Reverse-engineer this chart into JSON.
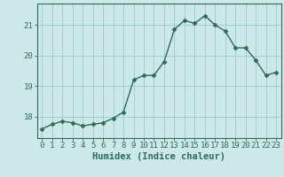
{
  "x": [
    0,
    1,
    2,
    3,
    4,
    5,
    6,
    7,
    8,
    9,
    10,
    11,
    12,
    13,
    14,
    15,
    16,
    17,
    18,
    19,
    20,
    21,
    22,
    23
  ],
  "y": [
    17.6,
    17.75,
    17.85,
    17.8,
    17.7,
    17.75,
    17.8,
    17.95,
    18.15,
    19.2,
    19.35,
    19.35,
    19.8,
    20.85,
    21.15,
    21.05,
    21.3,
    21.0,
    20.8,
    20.25,
    20.25,
    19.85,
    19.35,
    19.45
  ],
  "line_color": "#2e6b5e",
  "marker": "D",
  "markersize": 2.5,
  "bg_color": "#cce8e8",
  "grid_color": "#99cccc",
  "xlabel": "Humidex (Indice chaleur)",
  "ylabel": "",
  "xlim": [
    -0.5,
    23.5
  ],
  "ylim": [
    17.3,
    21.7
  ],
  "yticks": [
    18,
    19,
    20,
    21
  ],
  "xtick_labels": [
    "0",
    "1",
    "2",
    "3",
    "4",
    "5",
    "6",
    "7",
    "8",
    "9",
    "10",
    "11",
    "12",
    "13",
    "14",
    "15",
    "16",
    "17",
    "18",
    "19",
    "20",
    "21",
    "22",
    "23"
  ],
  "xlabel_fontsize": 7.5,
  "tick_fontsize": 6.5,
  "linewidth": 1.0
}
